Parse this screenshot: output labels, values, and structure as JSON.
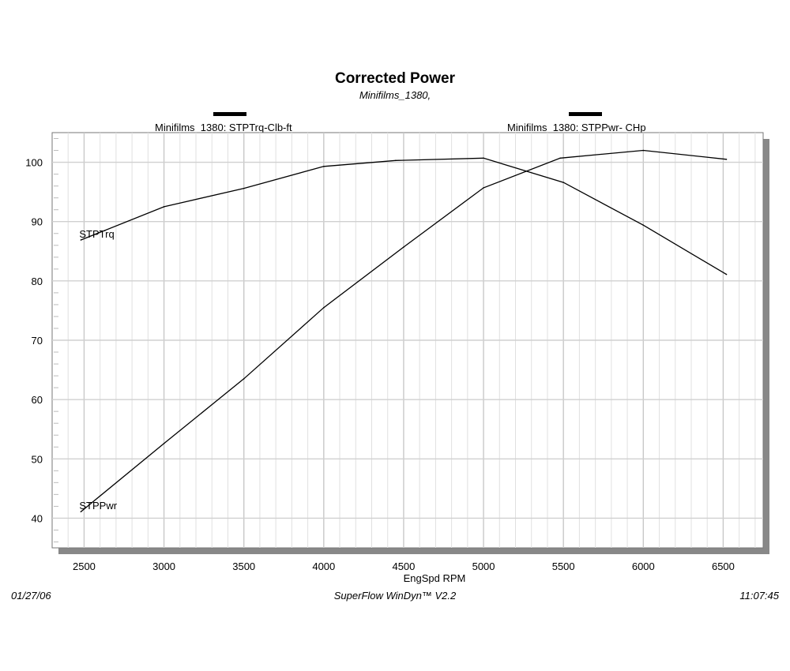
{
  "chart_data": {
    "type": "line",
    "title": "Corrected Power",
    "subtitle": "Minifilms_1380,",
    "xlabel": "EngSpd  RPM",
    "ylabel": "",
    "xlim": [
      2300,
      6750
    ],
    "ylim": [
      35,
      105
    ],
    "x_ticks": [
      2500,
      3000,
      3500,
      4000,
      4500,
      5000,
      5500,
      6000,
      6500
    ],
    "y_ticks": [
      40,
      50,
      60,
      70,
      80,
      90,
      100
    ],
    "x_tick_labels": [
      "2500",
      "3000",
      "3500",
      "4000",
      "4500",
      "5000",
      "5500",
      "6000",
      "6500"
    ],
    "y_tick_labels": [
      "40",
      "50",
      "60",
      "70",
      "80",
      "90",
      "100"
    ],
    "grid": true,
    "legend_position": "top",
    "series": [
      {
        "name": "Minifilms_1380: STPTrq-Clb-ft",
        "label": "STPTrq",
        "color": "#000000",
        "x": [
          2480,
          3000,
          3500,
          4000,
          4450,
          5000,
          5500,
          6000,
          6520
        ],
        "values": [
          86.9,
          92.5,
          95.6,
          99.3,
          100.3,
          100.7,
          96.6,
          89.4,
          81.1
        ]
      },
      {
        "name": "Minifilms_1380: STPPwr- CHp",
        "label": "STPPwr",
        "color": "#000000",
        "x": [
          2480,
          3000,
          3500,
          4000,
          4500,
          5000,
          5480,
          6000,
          6520
        ],
        "values": [
          41.1,
          52.6,
          63.5,
          75.5,
          85.7,
          95.7,
          100.7,
          102.0,
          100.5
        ]
      }
    ]
  },
  "footer": {
    "date": "01/27/06",
    "software": "SuperFlow WinDyn™ V2.2",
    "time": "11:07:45"
  }
}
